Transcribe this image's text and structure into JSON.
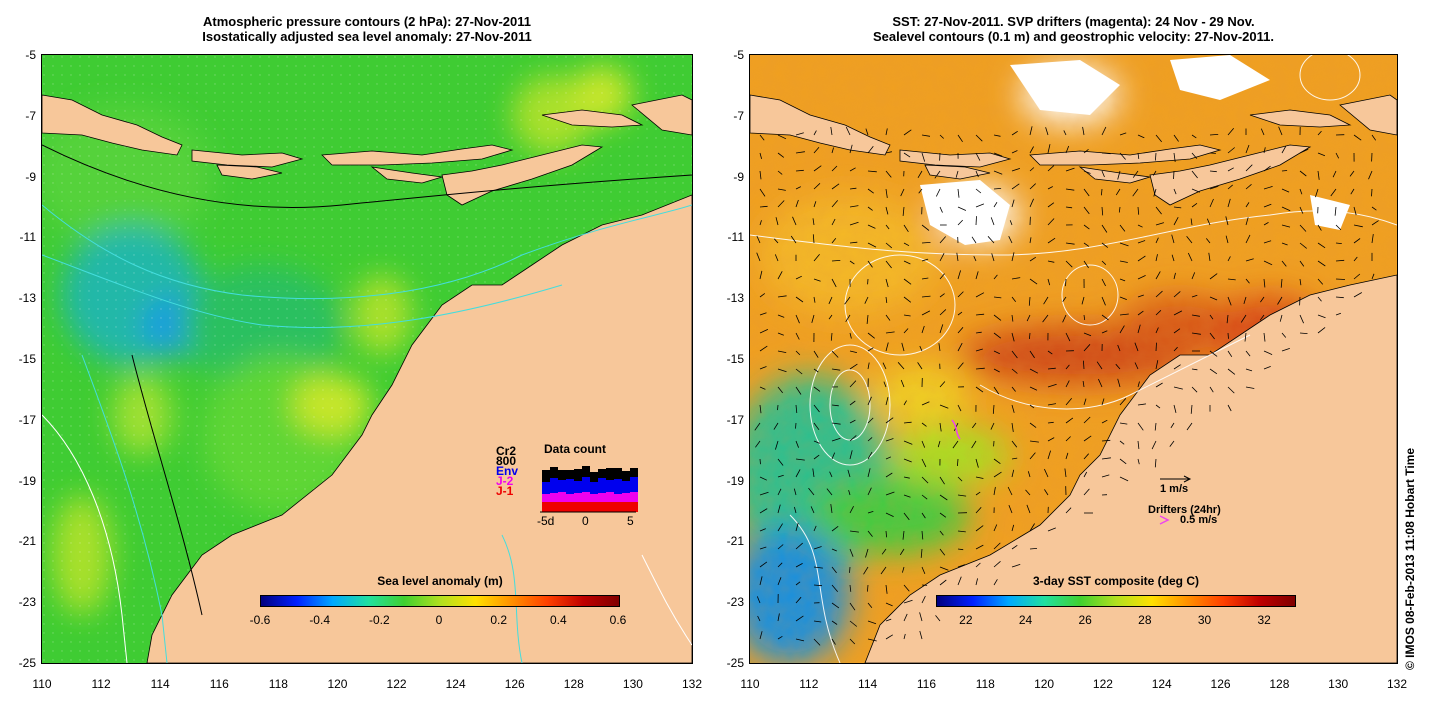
{
  "left_panel": {
    "title_line1": "Atmospheric pressure contours (2 hPa): 27-Nov-2011",
    "title_line2": "Isostatically adjusted sea level anomaly: 27-Nov-2011",
    "colorbar_title": "Sea level anomaly (m)",
    "colorbar_ticks": [
      "-0.6",
      "-0.4",
      "-0.2",
      "0",
      "0.2",
      "0.4",
      "0.6"
    ],
    "inset": {
      "title": "Data count",
      "labels": [
        {
          "text": "Cr2",
          "color": "#000000"
        },
        {
          "text": "800",
          "color": "#000000"
        },
        {
          "text": "Env",
          "color": "#0000ee"
        },
        {
          "text": "J-2",
          "color": "#ee00ee"
        },
        {
          "text": "J-1",
          "color": "#ee0000"
        }
      ],
      "xticks": [
        "-5d",
        "0",
        "5"
      ]
    }
  },
  "right_panel": {
    "title_line1": "SST: 27-Nov-2011. SVP drifters (magenta): 24 Nov - 29 Nov.",
    "title_line2": "Sealevel contours (0.1 m) and geostrophic velocity: 27-Nov-2011.",
    "colorbar_title": "3-day SST composite (deg C)",
    "colorbar_ticks": [
      "22",
      "24",
      "26",
      "28",
      "30",
      "32"
    ],
    "velocity_scale_label": "1 m/s",
    "drifters_label": "Drifters (24hr)",
    "drifters_speed_label": "0.5 m/s"
  },
  "axes": {
    "lat_ticks": [
      "-5",
      "-7",
      "-9",
      "-11",
      "-13",
      "-15",
      "-17",
      "-19",
      "-21",
      "-23",
      "-25"
    ],
    "lon_ticks": [
      "110",
      "112",
      "114",
      "116",
      "118",
      "120",
      "122",
      "124",
      "126",
      "128",
      "130",
      "132"
    ]
  },
  "copyright": "© IMOS 08-Feb-2013 11:08 Hobart Time",
  "colors": {
    "land": "#f7c79a",
    "sla_bg": "#33cc33",
    "sst_bg": "#f09a20",
    "contour_white": "#ffffff",
    "contour_cyan": "#44dddd",
    "arrow": "#000000",
    "drifter": "#ee44ee"
  }
}
